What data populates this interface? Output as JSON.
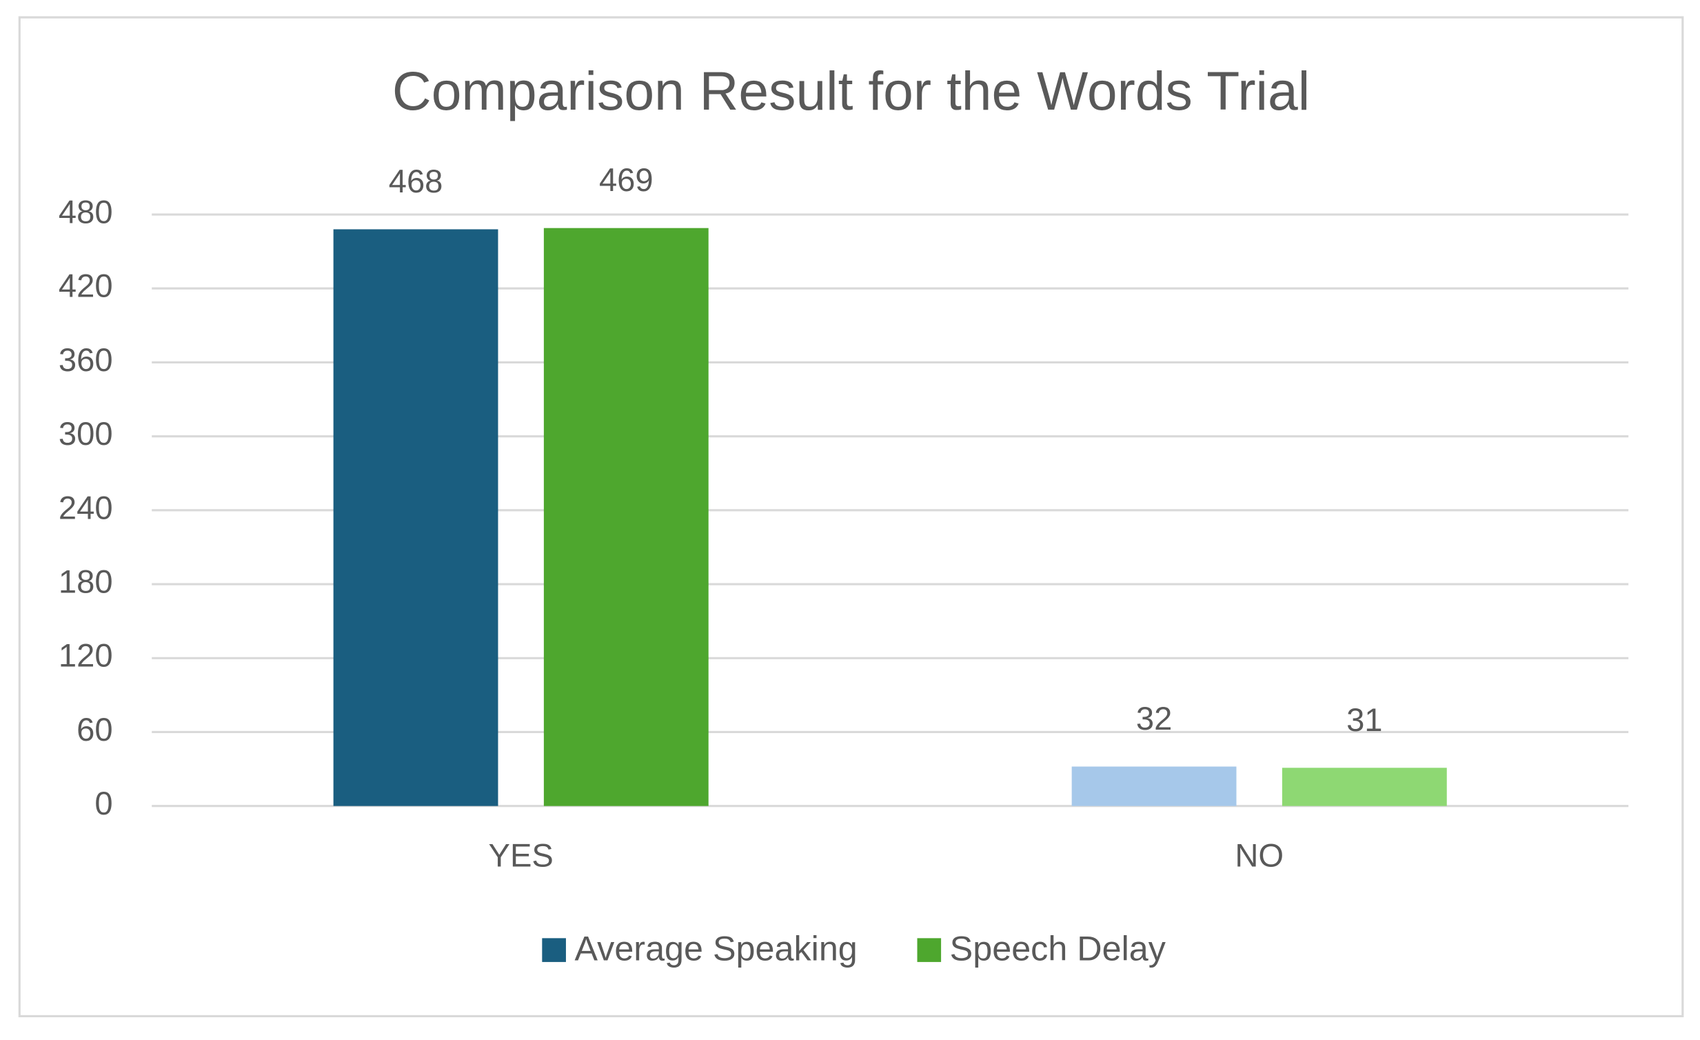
{
  "chart_data": {
    "type": "bar",
    "title": "Comparison Result for the Words Trial",
    "categories": [
      "YES",
      "NO"
    ],
    "series": [
      {
        "name": "Average Speaking",
        "color": "#1a5e80",
        "point_colors": [
          "#1a5e80",
          "#a6c8ea"
        ],
        "values": [
          468,
          32
        ]
      },
      {
        "name": "Speech Delay",
        "color": "#4ea72e",
        "point_colors": [
          "#4ea72e",
          "#8ed873"
        ],
        "values": [
          469,
          31
        ]
      }
    ],
    "ylim": [
      0,
      480
    ],
    "yticks": [
      0,
      60,
      120,
      180,
      240,
      300,
      360,
      420,
      480
    ],
    "grid": true,
    "legend": "bottom"
  }
}
